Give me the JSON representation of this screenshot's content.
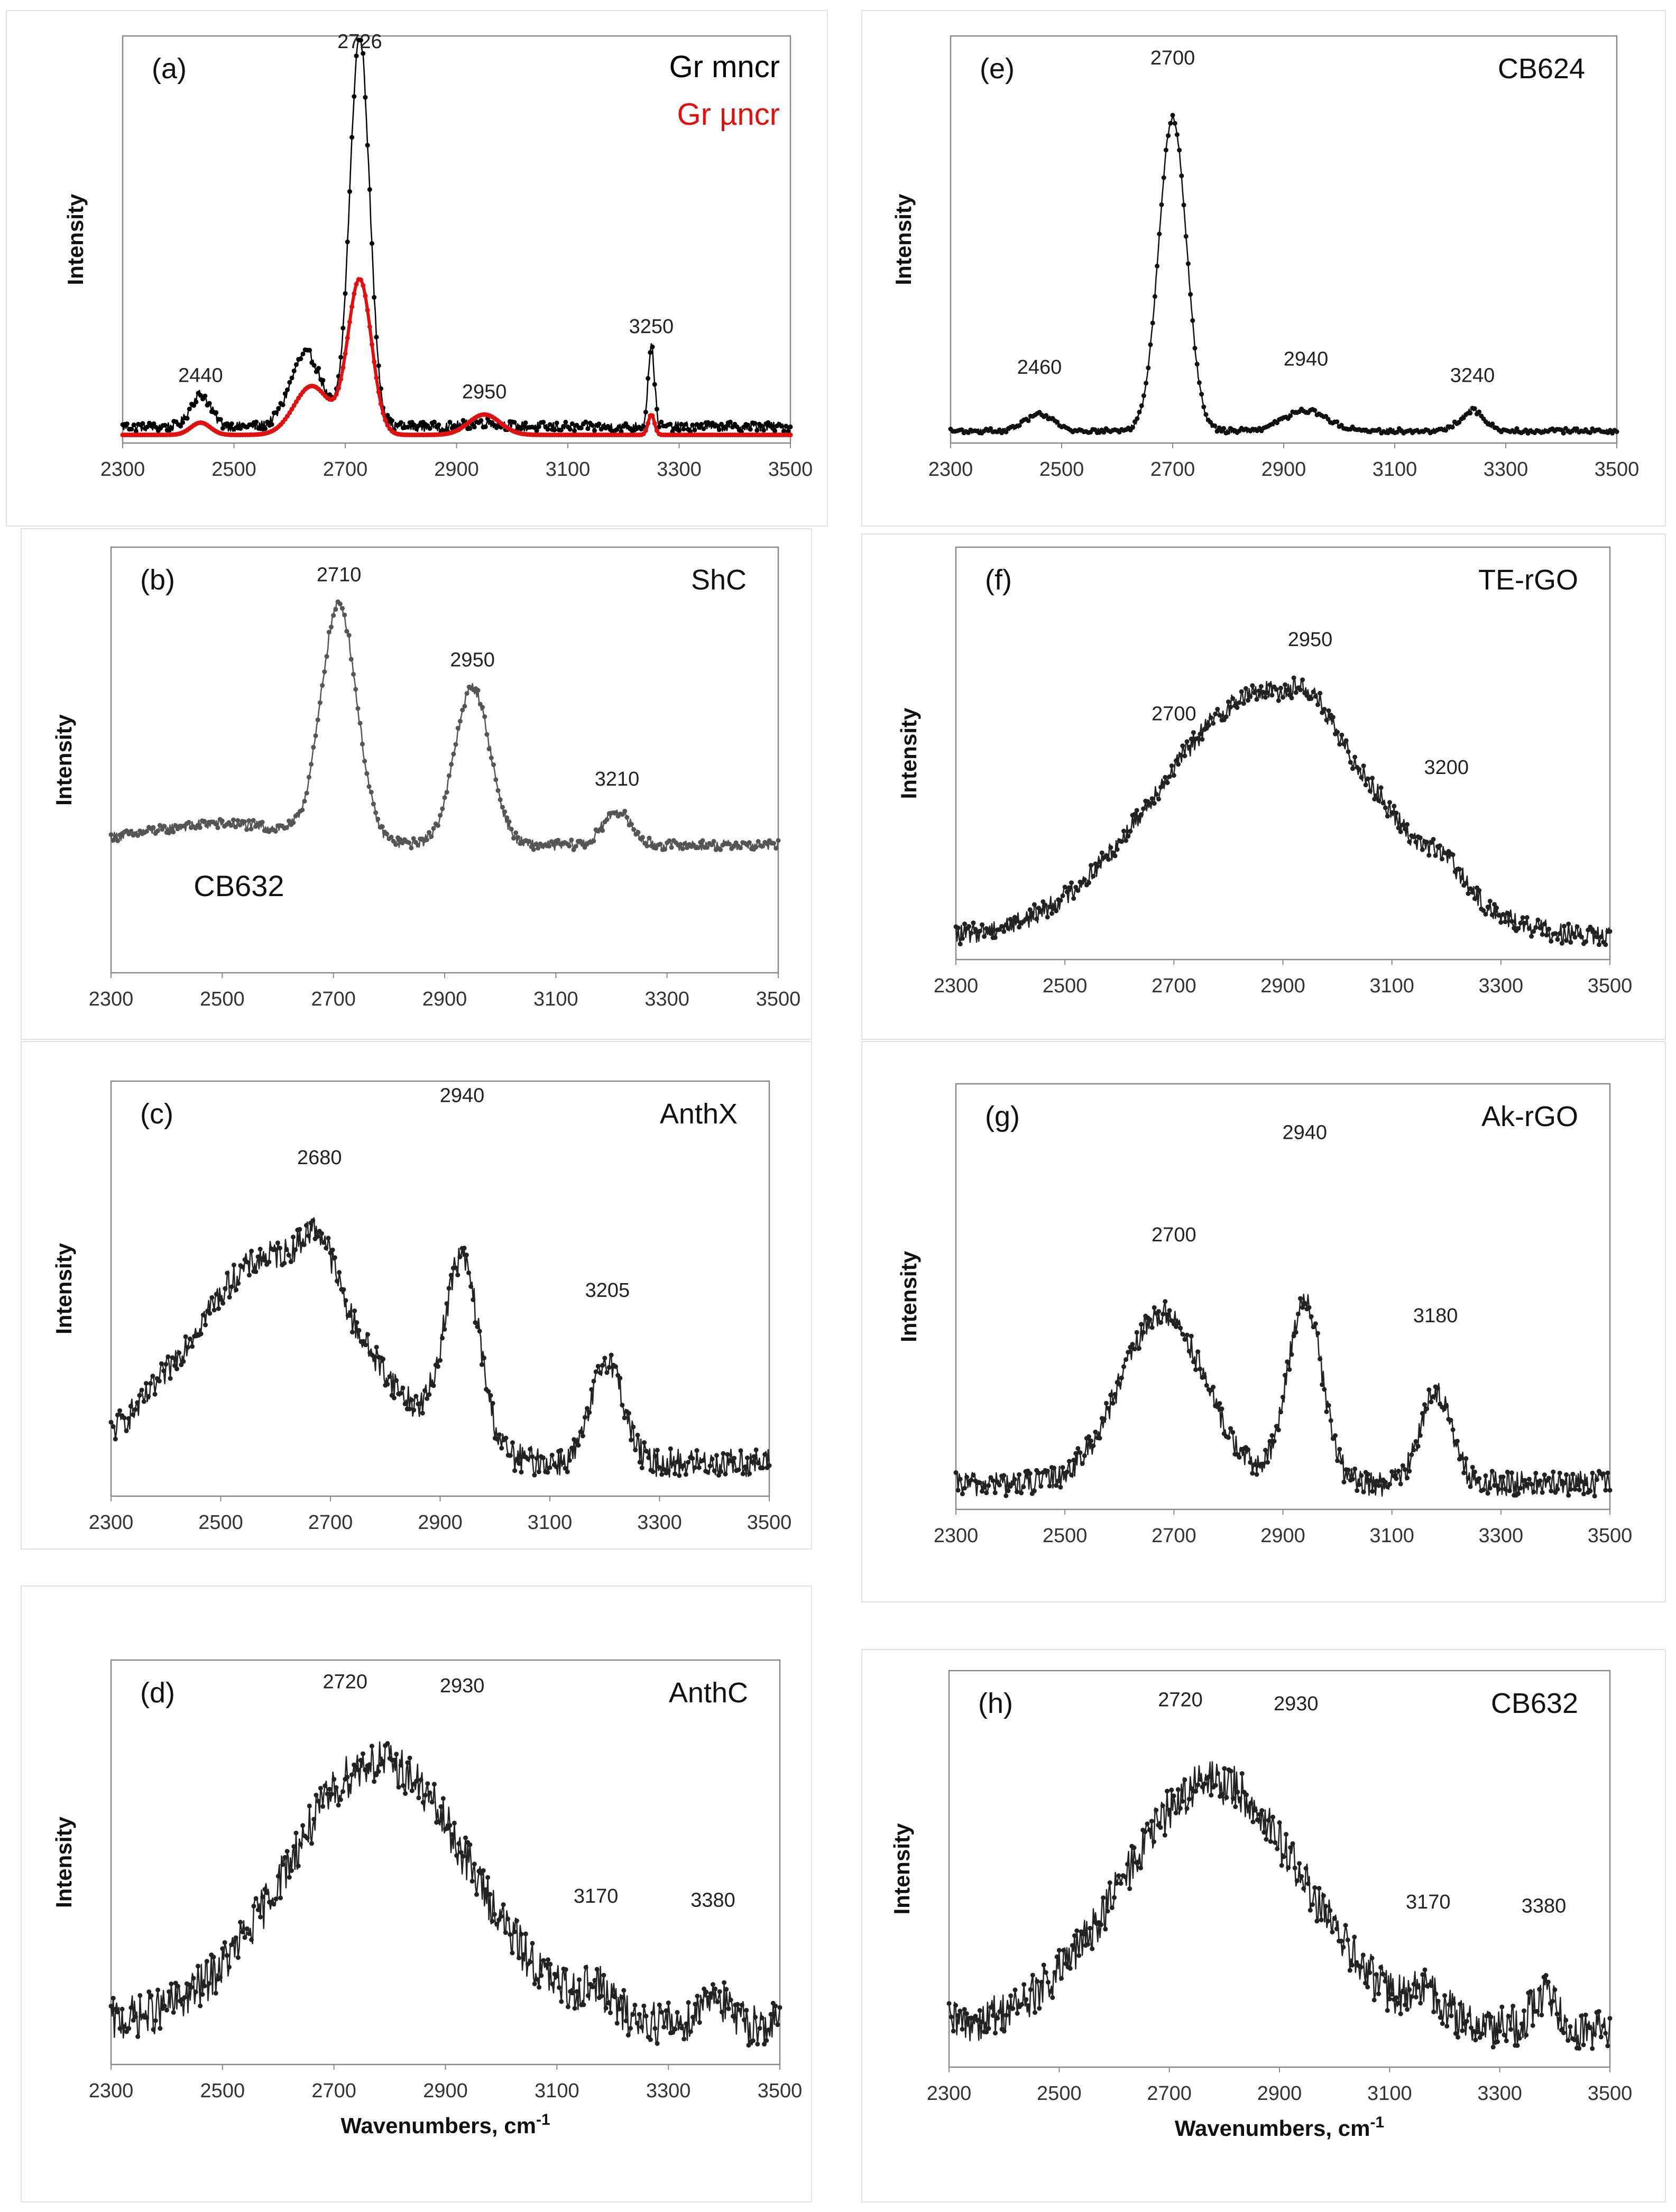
{
  "figure": {
    "xlabel": "Wavenumbers, cm",
    "xlabel_superscript": "-1",
    "ylabel": "Intensity"
  },
  "chart_data": [
    {
      "id": "a",
      "panel_label": "(a)",
      "type": "line",
      "sample": "",
      "xlim": [
        2300,
        3500
      ],
      "x_ticks": [
        "2300",
        "2500",
        "2700",
        "2900",
        "3100",
        "3300",
        "3500"
      ],
      "ylabel": "Intensity",
      "xlabel": "",
      "grid": false,
      "legend": [
        "Gr mncr",
        "Gr µncr"
      ],
      "series": [
        {
          "name": "Gr mncr",
          "color": "#000000",
          "baseline": 0.04,
          "peaks": [
            [
              2440,
              25,
              0.08
            ],
            [
              2630,
              40,
              0.18
            ],
            [
              2726,
              25,
              0.96
            ],
            [
              2950,
              40,
              0.01
            ],
            [
              3250,
              8,
              0.2
            ]
          ],
          "noise": 0.012
        },
        {
          "name": "Gr µncr",
          "color": "#e01010",
          "baseline": 0.02,
          "peaks": [
            [
              2440,
              25,
              0.03
            ],
            [
              2640,
              45,
              0.12
            ],
            [
              2726,
              30,
              0.38
            ],
            [
              2950,
              40,
              0.05
            ],
            [
              3250,
              8,
              0.05
            ]
          ],
          "noise": 0.0
        }
      ],
      "annotations": [
        {
          "text": "2726",
          "x": 2726,
          "y": 0.97
        },
        {
          "text": "2440",
          "x": 2440,
          "y": 0.15
        },
        {
          "text": "2950",
          "x": 2950,
          "y": 0.11
        },
        {
          "text": "3250",
          "x": 3250,
          "y": 0.27
        }
      ]
    },
    {
      "id": "b",
      "panel_label": "(b)",
      "type": "line",
      "sample": "ShC",
      "xlim": [
        2300,
        3500
      ],
      "x_ticks": [
        "2300",
        "2500",
        "2700",
        "2900",
        "3100",
        "3300",
        "3500"
      ],
      "ylabel": "Intensity",
      "xlabel": "",
      "grid": false,
      "extra_label": "CB632",
      "series": [
        {
          "name": "ShC",
          "color": "#555555",
          "baseline": 0.3,
          "peaks": [
            [
              2500,
              200,
              0.05
            ],
            [
              2710,
              45,
              0.55
            ],
            [
              2950,
              45,
              0.37
            ],
            [
              3210,
              35,
              0.08
            ]
          ],
          "noise": 0.012
        }
      ],
      "annotations": [
        {
          "text": "2710",
          "x": 2710,
          "y": 0.92
        },
        {
          "text": "2950",
          "x": 2950,
          "y": 0.72
        },
        {
          "text": "3210",
          "x": 3210,
          "y": 0.44
        }
      ]
    },
    {
      "id": "c",
      "panel_label": "(c)",
      "type": "line",
      "sample": "AnthX",
      "xlim": [
        2300,
        3500
      ],
      "x_ticks": [
        "2300",
        "2500",
        "2700",
        "2900",
        "3100",
        "3300",
        "3500"
      ],
      "ylabel": "Intensity",
      "xlabel": "",
      "grid": false,
      "series": [
        {
          "name": "AnthX",
          "color": "#222222",
          "baseline": 0.08,
          "peaks": [
            [
              2600,
              220,
              0.5
            ],
            [
              2680,
              40,
              0.12
            ],
            [
              2940,
              45,
              0.45
            ],
            [
              3205,
              40,
              0.25
            ]
          ],
          "noise": 0.035
        }
      ],
      "annotations": [
        {
          "text": "2680",
          "x": 2680,
          "y": 0.8
        },
        {
          "text": "2940",
          "x": 2940,
          "y": 0.95
        },
        {
          "text": "3205",
          "x": 3205,
          "y": 0.48
        }
      ]
    },
    {
      "id": "d",
      "panel_label": "(d)",
      "type": "line",
      "sample": "AnthC",
      "xlim": [
        2300,
        3500
      ],
      "x_ticks": [
        "2300",
        "2500",
        "2700",
        "2900",
        "3100",
        "3300",
        "3500"
      ],
      "ylabel": "Intensity",
      "xlabel": "Wavenumbers, cm-1",
      "grid": false,
      "series": [
        {
          "name": "AnthC",
          "color": "#222222",
          "baseline": 0.1,
          "peaks": [
            [
              2780,
              230,
              0.65
            ],
            [
              3170,
              40,
              0.06
            ],
            [
              3380,
              30,
              0.08
            ]
          ],
          "noise": 0.055
        }
      ],
      "annotations": [
        {
          "text": "2720",
          "x": 2720,
          "y": 0.93
        },
        {
          "text": "2930",
          "x": 2930,
          "y": 0.92
        },
        {
          "text": "3170",
          "x": 3170,
          "y": 0.4
        },
        {
          "text": "3380",
          "x": 3380,
          "y": 0.39
        }
      ]
    },
    {
      "id": "e",
      "panel_label": "(e)",
      "type": "line",
      "sample": "CB624",
      "xlim": [
        2300,
        3500
      ],
      "x_ticks": [
        "2300",
        "2500",
        "2700",
        "2900",
        "3100",
        "3300",
        "3500"
      ],
      "ylabel": "Intensity",
      "xlabel": "",
      "grid": false,
      "series": [
        {
          "name": "CB624",
          "color": "#111111",
          "baseline": 0.03,
          "peaks": [
            [
              2460,
              35,
              0.04
            ],
            [
              2700,
              35,
              0.77
            ],
            [
              2940,
              55,
              0.05
            ],
            [
              3240,
              30,
              0.05
            ]
          ],
          "noise": 0.006
        }
      ],
      "annotations": [
        {
          "text": "2700",
          "x": 2700,
          "y": 0.93
        },
        {
          "text": "2460",
          "x": 2460,
          "y": 0.17
        },
        {
          "text": "2940",
          "x": 2940,
          "y": 0.19
        },
        {
          "text": "3240",
          "x": 3240,
          "y": 0.15
        }
      ]
    },
    {
      "id": "f",
      "panel_label": "(f)",
      "type": "line",
      "sample": "TE-rGO",
      "xlim": [
        2300,
        3500
      ],
      "x_ticks": [
        "2300",
        "2500",
        "2700",
        "2900",
        "3100",
        "3300",
        "3500"
      ],
      "ylabel": "Intensity",
      "xlabel": "",
      "grid": false,
      "series": [
        {
          "name": "TE-rGO",
          "color": "#222222",
          "baseline": 0.05,
          "peaks": [
            [
              2870,
              280,
              0.6
            ],
            [
              2950,
              40,
              0.05
            ],
            [
              3200,
              45,
              0.05
            ]
          ],
          "noise": 0.025
        }
      ],
      "annotations": [
        {
          "text": "2950",
          "x": 2950,
          "y": 0.76
        },
        {
          "text": "2700",
          "x": 2700,
          "y": 0.58
        },
        {
          "text": "3200",
          "x": 3200,
          "y": 0.45
        }
      ]
    },
    {
      "id": "g",
      "panel_label": "(g)",
      "type": "line",
      "sample": "Ak-rGO",
      "xlim": [
        2300,
        3500
      ],
      "x_ticks": [
        "2300",
        "2500",
        "2700",
        "2900",
        "3100",
        "3300",
        "3500"
      ],
      "ylabel": "Intensity",
      "xlabel": "",
      "grid": false,
      "series": [
        {
          "name": "Ak-rGO",
          "color": "#222222",
          "baseline": 0.06,
          "peaks": [
            [
              2680,
              110,
              0.4
            ],
            [
              2940,
              45,
              0.43
            ],
            [
              3180,
              40,
              0.22
            ]
          ],
          "noise": 0.03
        }
      ],
      "annotations": [
        {
          "text": "2700",
          "x": 2700,
          "y": 0.63
        },
        {
          "text": "2940",
          "x": 2940,
          "y": 0.87
        },
        {
          "text": "3180",
          "x": 3180,
          "y": 0.44
        }
      ]
    },
    {
      "id": "h",
      "panel_label": "(h)",
      "type": "line",
      "sample": "CB632",
      "xlim": [
        2300,
        3500
      ],
      "x_ticks": [
        "2300",
        "2500",
        "2700",
        "2900",
        "3100",
        "3300",
        "3500"
      ],
      "ylabel": "Intensity",
      "xlabel": "Wavenumbers, cm-1",
      "grid": false,
      "series": [
        {
          "name": "CB632",
          "color": "#222222",
          "baseline": 0.1,
          "peaks": [
            [
              2780,
              230,
              0.62
            ],
            [
              3170,
              40,
              0.06
            ],
            [
              3380,
              30,
              0.08
            ]
          ],
          "noise": 0.055
        }
      ],
      "annotations": [
        {
          "text": "2720",
          "x": 2720,
          "y": 0.91
        },
        {
          "text": "2930",
          "x": 2930,
          "y": 0.9
        },
        {
          "text": "3170",
          "x": 3170,
          "y": 0.4
        },
        {
          "text": "3380",
          "x": 3380,
          "y": 0.39
        }
      ]
    }
  ]
}
